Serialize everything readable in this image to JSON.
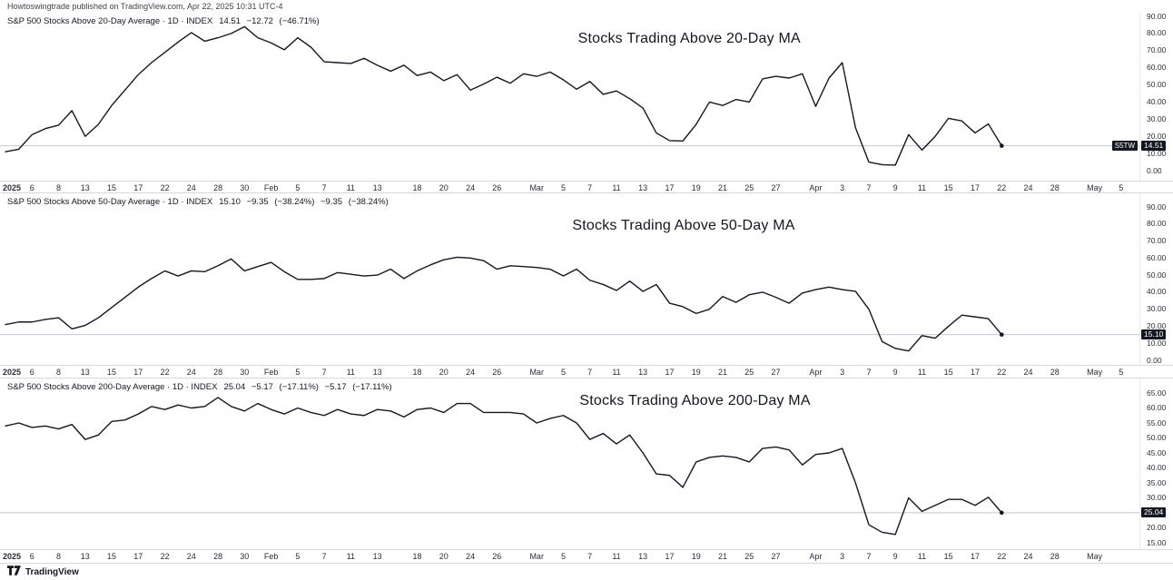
{
  "header": {
    "attribution": "Howtoswingtrade published on TradingView.com, Apr 22, 2025 10:31 UTC-4"
  },
  "footer": {
    "brand": "TradingView"
  },
  "colors": {
    "line": "#131722",
    "price_line": "#c5c8d1",
    "price_label_bg": "#131722",
    "price_label_text": "#ffffff",
    "axis_text": "#2a2e39",
    "separator": "#d6d9e0"
  },
  "x_axis": {
    "description": "Daily bars Jan 2 2025 through Apr 22 2025, axis extends to May 5 2025",
    "ticks": [
      [
        0,
        "2025"
      ],
      [
        2,
        "6"
      ],
      [
        4,
        "8"
      ],
      [
        6,
        "13"
      ],
      [
        8,
        "15"
      ],
      [
        10,
        "17"
      ],
      [
        12,
        "22"
      ],
      [
        14,
        "24"
      ],
      [
        16,
        "28"
      ],
      [
        18,
        "30"
      ],
      [
        20,
        "Feb"
      ],
      [
        22,
        "5"
      ],
      [
        24,
        "7"
      ],
      [
        26,
        "11"
      ],
      [
        28,
        "13"
      ],
      [
        31,
        "18"
      ],
      [
        33,
        "20"
      ],
      [
        35,
        "24"
      ],
      [
        37,
        "26"
      ],
      [
        40,
        "Mar"
      ],
      [
        42,
        "5"
      ],
      [
        44,
        "7"
      ],
      [
        46,
        "11"
      ],
      [
        48,
        "13"
      ],
      [
        50,
        "17"
      ],
      [
        52,
        "19"
      ],
      [
        54,
        "21"
      ],
      [
        56,
        "25"
      ],
      [
        58,
        "27"
      ],
      [
        61,
        "Apr"
      ],
      [
        63,
        "3"
      ],
      [
        65,
        "7"
      ],
      [
        67,
        "9"
      ],
      [
        69,
        "11"
      ],
      [
        71,
        "15"
      ],
      [
        73,
        "17"
      ],
      [
        75,
        "22"
      ],
      [
        77,
        "24"
      ],
      [
        79,
        "28"
      ],
      [
        82,
        "May"
      ],
      [
        84,
        "5"
      ]
    ]
  },
  "chart_data": [
    {
      "type": "line",
      "title": "Stocks Trading Above 20-Day MA",
      "series_name": "S&P 500 Stocks Above 20-Day Average",
      "interval": "1D",
      "exchange": "INDEX",
      "ticker_tag": "S5TW",
      "last": "14.51",
      "changes": [
        "−12.72 (−46.71%)"
      ],
      "last_price": 14.51,
      "ylim": [
        0,
        90
      ],
      "y_ticks": [
        90,
        80,
        70,
        60,
        50,
        40,
        30,
        20,
        10,
        0
      ],
      "max_tick_day": 84,
      "values": [
        11,
        12.5,
        21,
        24.5,
        26.5,
        35,
        20,
        27,
        38,
        47,
        56,
        63,
        69,
        75,
        80.5,
        75.5,
        77.5,
        80,
        84,
        77.5,
        74.5,
        70.5,
        77.5,
        72,
        63.5,
        63,
        62.5,
        65.5,
        61.5,
        58,
        61.5,
        55.5,
        57.5,
        52.5,
        56,
        47,
        50.5,
        54.5,
        51,
        56.5,
        55,
        57.5,
        53,
        47.5,
        52,
        44.5,
        46.5,
        42,
        36.5,
        22,
        17.5,
        17.3,
        27,
        40,
        38,
        41.5,
        40,
        53.5,
        55,
        54,
        56.5,
        37.5,
        54,
        63,
        25,
        5,
        3.5,
        3.2,
        21,
        12,
        20,
        30.5,
        29,
        22,
        27.23,
        14.51
      ]
    },
    {
      "type": "line",
      "title": "Stocks Trading Above 50-Day MA",
      "series_name": "S&P 500 Stocks Above 50-Day Average",
      "interval": "1D",
      "exchange": "INDEX",
      "ticker_tag": null,
      "last": "15.10",
      "changes": [
        "−9.35 (−38.24%)",
        "−9.35 (−38.24%)"
      ],
      "last_price": 15.1,
      "ylim": [
        0,
        90
      ],
      "y_ticks": [
        90,
        80,
        70,
        60,
        50,
        40,
        30,
        20,
        10,
        0
      ],
      "max_tick_day": 84,
      "values": [
        21,
        22.5,
        22.5,
        24,
        25,
        18.5,
        20.5,
        25,
        31,
        37,
        43,
        48,
        52.5,
        49.5,
        52.5,
        52,
        55.5,
        59.5,
        52.5,
        55,
        57.5,
        52,
        47.5,
        47.5,
        48,
        51.5,
        50.5,
        49.5,
        50,
        53.5,
        48,
        52.5,
        56,
        59,
        60.5,
        60,
        58.5,
        53.5,
        55.5,
        55,
        54.5,
        53.5,
        49.5,
        53.5,
        47,
        44.5,
        41,
        46.5,
        40.5,
        44.5,
        33.5,
        31.5,
        27.5,
        30,
        37.5,
        34,
        38.5,
        40,
        37,
        33.5,
        39.5,
        41.5,
        43,
        41.5,
        40.5,
        30,
        11,
        7,
        5.5,
        14.5,
        13,
        20,
        26.5,
        25.5,
        24.45,
        15.1
      ]
    },
    {
      "type": "line",
      "title": "Stocks Trading Above 200-Day MA",
      "series_name": "S&P 500 Stocks Above 200-Day Average",
      "interval": "1D",
      "exchange": "INDEX",
      "ticker_tag": null,
      "last": "25.04",
      "changes": [
        "−5.17 (−17.11%)",
        "−5.17 (−17.11%)"
      ],
      "last_price": 25.04,
      "ylim": [
        15,
        65
      ],
      "y_ticks": [
        65,
        60,
        55,
        50,
        45,
        40,
        35,
        30,
        20,
        15
      ],
      "max_tick_day": 82,
      "values": [
        54,
        55,
        53.5,
        54,
        53,
        54.5,
        49.5,
        51,
        55.5,
        56,
        58,
        60.5,
        59.5,
        61,
        60,
        60.5,
        63.5,
        60.5,
        59,
        61.5,
        59.5,
        58,
        60,
        58.5,
        57.5,
        59.5,
        58,
        57.5,
        59.5,
        59,
        57,
        59.5,
        60,
        58.5,
        61.5,
        61.5,
        58.5,
        58.5,
        58.5,
        58,
        55,
        56.5,
        57.5,
        55,
        49.5,
        51.5,
        48,
        51,
        45,
        38,
        37.5,
        33.5,
        42,
        43.5,
        44,
        43.5,
        42,
        46.5,
        47,
        46,
        41,
        44.5,
        45,
        46.5,
        35,
        21,
        18.5,
        17.8,
        30,
        25.5,
        27.5,
        29.5,
        29.5,
        27.5,
        30.21,
        25.04
      ]
    }
  ]
}
